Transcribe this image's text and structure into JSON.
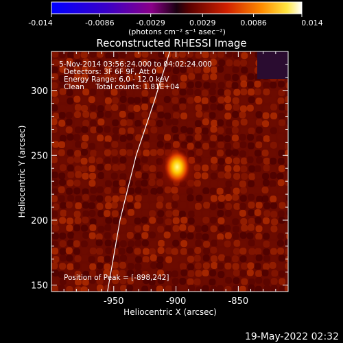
{
  "chart_data": {
    "type": "heatmap",
    "title": "Reconstructed RHESSI Image",
    "info_lines": [
      "5-Nov-2014 03:56:24.000 to 04:02:24.000",
      "Detectors: 3F 6F 9F, Att 0",
      "Energy Range: 6.0 - 12.0 keV",
      "Clean     Total counts: 1.81E+04"
    ],
    "peak_label": "Position of Peak = [-898,242]",
    "peak": [
      -898,
      242
    ],
    "xlabel": "Heliocentric X (arcsec)",
    "ylabel": "Heliocentric Y (arcsec)",
    "xlim": [
      -1000,
      -810
    ],
    "ylim": [
      145,
      330
    ],
    "xticks": [
      -950,
      -900,
      -850
    ],
    "xtick_labels": [
      "-950",
      "-900",
      "-850"
    ],
    "yticks": [
      150,
      200,
      250,
      300
    ],
    "ytick_labels": [
      "150",
      "200",
      "250",
      "300"
    ],
    "colorbar": {
      "range": [
        -0.014,
        0.014
      ],
      "tick_values": [
        -0.014,
        -0.0086,
        -0.0029,
        0.0029,
        0.0086,
        0.014
      ],
      "tick_labels": [
        "-0.014",
        "-0.0086",
        "-0.0029",
        "0.0029",
        "0.0086",
        "0.014"
      ],
      "unit_label": "(photons cm⁻² s⁻¹ asec⁻²)"
    },
    "limb_curve": [
      [
        -955,
        145
      ],
      [
        -945,
        200
      ],
      [
        -932,
        250
      ],
      [
        -918,
        290
      ],
      [
        -905,
        330
      ]
    ]
  },
  "footer": {
    "date": "19-May-2022 02:32"
  }
}
